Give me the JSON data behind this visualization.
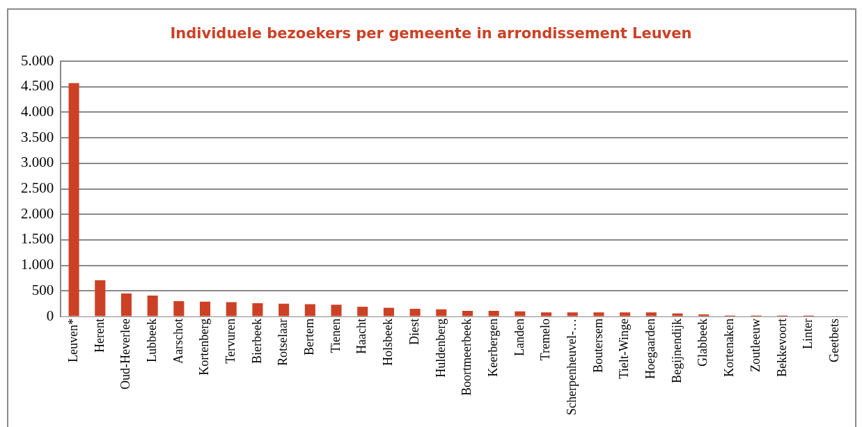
{
  "chart_data": {
    "type": "bar",
    "title": "Individuele bezoekers per gemeente in arrondissement Leuven",
    "categories": [
      "Leuven*",
      "Herent",
      "Oud-Heverlee",
      "Lubbeek",
      "Aarschot",
      "Kortenberg",
      "Tervuren",
      "Bierbeek",
      "Rotselaar",
      "Bertem",
      "Tienen",
      "Haacht",
      "Holsbeek",
      "Diest",
      "Huldenberg",
      "Boortmeerbeek",
      "Keerbergen",
      "Landen",
      "Tremelo",
      "Scherpenheuvel-…",
      "Boutersem",
      "Tielt-Winge",
      "Hoegaarden",
      "Begijnendijk",
      "Glabbeek",
      "Kortenaken",
      "Zoutleeuw",
      "Bekkevoort",
      "Linter",
      "Geetbets"
    ],
    "values": [
      4570,
      710,
      450,
      410,
      300,
      290,
      280,
      260,
      250,
      240,
      230,
      190,
      170,
      150,
      140,
      110,
      110,
      100,
      80,
      80,
      80,
      80,
      80,
      60,
      40,
      20,
      20,
      20,
      20,
      0
    ],
    "color": "#cc4125",
    "ylim": [
      0,
      5000
    ],
    "yticks": [
      {
        "value": 0,
        "label": "0"
      },
      {
        "value": 500,
        "label": "500"
      },
      {
        "value": 1000,
        "label": "1.000"
      },
      {
        "value": 1500,
        "label": "1.500"
      },
      {
        "value": 2000,
        "label": "2.000"
      },
      {
        "value": 2500,
        "label": "2.500"
      },
      {
        "value": 3000,
        "label": "3.000"
      },
      {
        "value": 3500,
        "label": "3.500"
      },
      {
        "value": 4000,
        "label": "4.000"
      },
      {
        "value": 4500,
        "label": "4.500"
      },
      {
        "value": 5000,
        "label": "5.000"
      }
    ],
    "grid": "y",
    "legend": false
  }
}
